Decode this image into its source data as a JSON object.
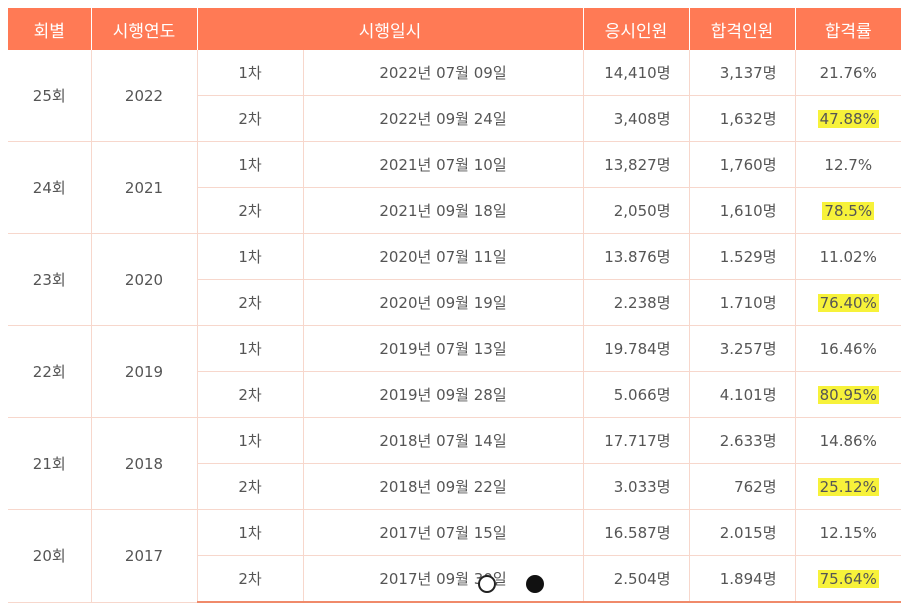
{
  "headers": [
    "회별",
    "시행연도",
    "시행일시",
    "응시인원",
    "합격인원",
    "합격률"
  ],
  "rounds": [
    {
      "round": "25회",
      "year": "2022",
      "sessions": [
        {
          "session": "1차",
          "date": "2022년 07월 09일",
          "applicants": "14,410명",
          "passed": "3,137명",
          "rate": "21.76%",
          "highlight": false
        },
        {
          "session": "2차",
          "date": "2022년 09월 24일",
          "applicants": "3,408명",
          "passed": "1,632명",
          "rate": "47.88%",
          "highlight": true
        }
      ]
    },
    {
      "round": "24회",
      "year": "2021",
      "sessions": [
        {
          "session": "1차",
          "date": "2021년 07월 10일",
          "applicants": "13,827명",
          "passed": "1,760명",
          "rate": "12.7%",
          "highlight": false
        },
        {
          "session": "2차",
          "date": "2021년 09월 18일",
          "applicants": "2,050명",
          "passed": "1,610명",
          "rate": "78.5%",
          "highlight": true
        }
      ]
    },
    {
      "round": "23회",
      "year": "2020",
      "sessions": [
        {
          "session": "1차",
          "date": "2020년 07월 11일",
          "applicants": "13.876명",
          "passed": "1.529명",
          "rate": "11.02%",
          "highlight": false
        },
        {
          "session": "2차",
          "date": "2020년 09월 19일",
          "applicants": "2.238명",
          "passed": "1.710명",
          "rate": "76.40%",
          "highlight": true
        }
      ]
    },
    {
      "round": "22회",
      "year": "2019",
      "sessions": [
        {
          "session": "1차",
          "date": "2019년 07월 13일",
          "applicants": "19.784명",
          "passed": "3.257명",
          "rate": "16.46%",
          "highlight": false
        },
        {
          "session": "2차",
          "date": "2019년 09월 28일",
          "applicants": "5.066명",
          "passed": "4.101명",
          "rate": "80.95%",
          "highlight": true
        }
      ]
    },
    {
      "round": "21회",
      "year": "2018",
      "sessions": [
        {
          "session": "1차",
          "date": "2018년 07월 14일",
          "applicants": "17.717명",
          "passed": "2.633명",
          "rate": "14.86%",
          "highlight": false
        },
        {
          "session": "2차",
          "date": "2018년 09월 22일",
          "applicants": "3.033명",
          "passed": "762명",
          "rate": "25.12%",
          "highlight": true
        }
      ]
    },
    {
      "round": "20회",
      "year": "2017",
      "sessions": [
        {
          "session": "1차",
          "date": "2017년 07월 15일",
          "applicants": "16.587명",
          "passed": "2.015명",
          "rate": "12.15%",
          "highlight": false
        },
        {
          "session": "2차",
          "date": "2017년 09월 30일",
          "applicants": "2.504명",
          "passed": "1.894명",
          "rate": "75.64%",
          "highlight": true
        }
      ]
    }
  ],
  "colors": {
    "header_bg": "#ff7a55",
    "highlight": "#f7f23a"
  },
  "carousel": {
    "active_index": 1,
    "count": 2
  }
}
